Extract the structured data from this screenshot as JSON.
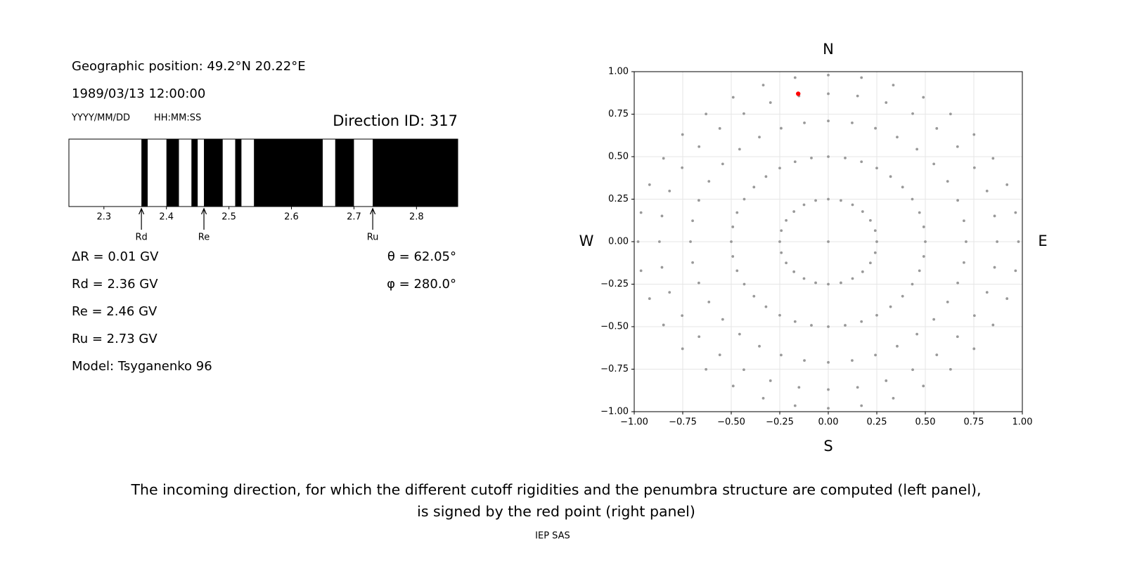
{
  "info": {
    "position": "Geographic position: 49.2°N 20.22°E",
    "datetime": "1989/03/13 12:00:00",
    "date_format": "YYYY/MM/DD",
    "time_format": "HH:MM:SS",
    "lines_left": [
      "ΔR = 0.01 GV",
      "Rd = 2.36 GV",
      "Re = 2.46 GV",
      "Ru = 2.73 GV",
      "Model: Tsyganenko 96"
    ],
    "lines_right": [
      "θ = 62.05°",
      "φ = 280.0°"
    ]
  },
  "chart_data": [
    {
      "type": "penumbra",
      "title": "Direction ID: 317",
      "background_color": "#000000",
      "color": "#ffffff",
      "xlim": [
        2.244,
        2.866
      ],
      "xticks": [
        2.3,
        2.4,
        2.5,
        2.6,
        2.7,
        2.8
      ],
      "intervals": [
        [
          2.244,
          2.36
        ],
        [
          2.37,
          2.4
        ],
        [
          2.42,
          2.44
        ],
        [
          2.45,
          2.46
        ],
        [
          2.49,
          2.51
        ],
        [
          2.52,
          2.54
        ],
        [
          2.65,
          2.67
        ],
        [
          2.7,
          2.73
        ]
      ],
      "markers": [
        {
          "label": "Rd",
          "value": 2.36
        },
        {
          "label": "Re",
          "value": 2.46
        },
        {
          "label": "Ru",
          "value": 2.73
        }
      ]
    },
    {
      "type": "scatter",
      "xlim": [
        -1,
        1
      ],
      "ylim": [
        -1,
        1
      ],
      "grid": true,
      "xticks": [
        {
          "value": -1,
          "label": "−1.00"
        },
        {
          "value": -0.75,
          "label": "−0.75"
        },
        {
          "value": -0.5,
          "label": "−0.50"
        },
        {
          "value": -0.25,
          "label": "−0.25"
        },
        {
          "value": 0,
          "label": "0.00"
        },
        {
          "value": 0.25,
          "label": "0.25"
        },
        {
          "value": 0.5,
          "label": "0.50"
        },
        {
          "value": 0.75,
          "label": "0.75"
        },
        {
          "value": 1,
          "label": "1.00"
        }
      ],
      "yticks": [
        {
          "value": -1,
          "label": "−1.00"
        },
        {
          "value": -0.75,
          "label": "−0.75"
        },
        {
          "value": -0.5,
          "label": "−0.50"
        },
        {
          "value": -0.25,
          "label": "−0.25"
        },
        {
          "value": 0,
          "label": "0.00"
        },
        {
          "value": 0.25,
          "label": "0.25"
        },
        {
          "value": 0.5,
          "label": "0.50"
        },
        {
          "value": 0.75,
          "label": "0.75"
        },
        {
          "value": 1,
          "label": "1.00"
        }
      ],
      "compass": {
        "top": "N",
        "bottom": "S",
        "left": "W",
        "right": "E"
      },
      "series": [
        {
          "color": "#999999",
          "x": [
            0.5,
            0.71,
            0.87,
            0.98,
            0.492,
            0.699,
            0.857,
            0.965,
            0.47,
            0.667,
            0.818,
            0.921,
            0.433,
            0.615,
            0.753,
            0.849,
            0.383,
            0.544,
            0.666,
            0.751,
            0.321,
            0.457,
            0.559,
            0.63,
            0.25,
            0.355,
            0.435,
            0.49,
            0.171,
            0.243,
            0.298,
            0.335,
            0.087,
            0.123,
            0.151,
            0.171,
            0,
            0,
            0,
            0,
            -0.087,
            -0.123,
            -0.151,
            -0.171,
            -0.171,
            -0.243,
            -0.298,
            -0.335,
            -0.25,
            -0.355,
            -0.435,
            -0.49,
            -0.321,
            -0.457,
            -0.559,
            -0.63,
            -0.383,
            -0.544,
            -0.666,
            -0.751,
            -0.433,
            -0.615,
            -0.753,
            -0.849,
            -0.47,
            -0.667,
            -0.818,
            -0.921,
            -0.492,
            -0.699,
            -0.857,
            -0.965,
            -0.5,
            -0.71,
            -0.87,
            -0.98,
            -0.492,
            -0.699,
            -0.857,
            -0.965,
            -0.47,
            -0.667,
            -0.818,
            -0.921,
            -0.433,
            -0.615,
            -0.753,
            -0.849,
            -0.383,
            -0.544,
            -0.666,
            -0.751,
            -0.321,
            -0.457,
            -0.559,
            -0.63,
            -0.25,
            -0.355,
            -0.435,
            -0.49,
            -0.171,
            -0.243,
            -0.298,
            -0.335,
            -0.087,
            -0.123,
            -0.151,
            -0.171,
            0,
            0,
            0,
            0,
            0.087,
            0.123,
            0.151,
            0.171,
            0.171,
            0.243,
            0.298,
            0.335,
            0.25,
            0.355,
            0.435,
            0.49,
            0.321,
            0.457,
            0.559,
            0.63,
            0.383,
            0.544,
            0.666,
            0.751,
            0.433,
            0.615,
            0.753,
            0.849,
            0.47,
            0.667,
            0.818,
            0.921,
            0.492,
            0.699,
            0.857,
            0.965
          ],
          "y": [
            0,
            0,
            0,
            0,
            0.087,
            0.123,
            0.151,
            0.171,
            0.171,
            0.243,
            0.298,
            0.335,
            0.25,
            0.355,
            0.435,
            0.49,
            0.321,
            0.457,
            0.559,
            0.63,
            0.383,
            0.544,
            0.666,
            0.751,
            0.433,
            0.615,
            0.753,
            0.849,
            0.47,
            0.667,
            0.818,
            0.921,
            0.492,
            0.699,
            0.857,
            0.965,
            0.5,
            0.71,
            0.87,
            0.98,
            0.492,
            0.699,
            0.857,
            0.965,
            0.47,
            0.667,
            0.818,
            0.921,
            0.433,
            0.615,
            0.753,
            0.849,
            0.383,
            0.544,
            0.666,
            0.751,
            0.321,
            0.457,
            0.559,
            0.63,
            0.25,
            0.355,
            0.435,
            0.49,
            0.171,
            0.243,
            0.298,
            0.335,
            0.087,
            0.123,
            0.151,
            0.171,
            0,
            0,
            0,
            0,
            -0.087,
            -0.123,
            -0.151,
            -0.171,
            -0.171,
            -0.243,
            -0.298,
            -0.335,
            -0.25,
            -0.355,
            -0.435,
            -0.49,
            -0.321,
            -0.457,
            -0.559,
            -0.63,
            -0.383,
            -0.544,
            -0.666,
            -0.751,
            -0.433,
            -0.615,
            -0.753,
            -0.849,
            -0.47,
            -0.667,
            -0.818,
            -0.921,
            -0.492,
            -0.699,
            -0.857,
            -0.965,
            -0.5,
            -0.71,
            -0.87,
            -0.98,
            -0.492,
            -0.699,
            -0.857,
            -0.965,
            -0.47,
            -0.667,
            -0.818,
            -0.921,
            -0.433,
            -0.615,
            -0.753,
            -0.849,
            -0.383,
            -0.544,
            -0.666,
            -0.751,
            -0.321,
            -0.457,
            -0.559,
            -0.63,
            -0.25,
            -0.355,
            -0.435,
            -0.49,
            -0.171,
            -0.243,
            -0.298,
            -0.335,
            -0.087,
            -0.123,
            -0.151,
            -0.171
          ]
        },
        {
          "color": "#999999",
          "x": [
            0.25,
            0.242,
            0.217,
            0.177,
            0.125,
            0.065,
            0,
            -0.065,
            -0.125,
            -0.177,
            -0.217,
            -0.242,
            -0.25,
            -0.242,
            -0.217,
            -0.177,
            -0.125,
            -0.065,
            0,
            0.065,
            0.125,
            0.177,
            0.217,
            0.242
          ],
          "y": [
            0,
            0.065,
            0.125,
            0.177,
            0.217,
            0.242,
            0.25,
            0.242,
            0.217,
            0.177,
            0.125,
            0.065,
            0,
            -0.065,
            -0.125,
            -0.177,
            -0.217,
            -0.242,
            -0.25,
            -0.242,
            -0.217,
            -0.177,
            -0.125,
            -0.065
          ]
        },
        {
          "color": "#999999",
          "x": [
            0
          ],
          "y": [
            0
          ]
        },
        {
          "color": "#ff0000",
          "x": [
            -0.155
          ],
          "y": [
            0.87
          ]
        }
      ]
    }
  ],
  "caption": [
    "The incoming direction, for which the different cutoff rigidities and the penumbra structure are computed (left panel),",
    "is signed by the red point (right panel)"
  ],
  "credit": "IEP SAS"
}
